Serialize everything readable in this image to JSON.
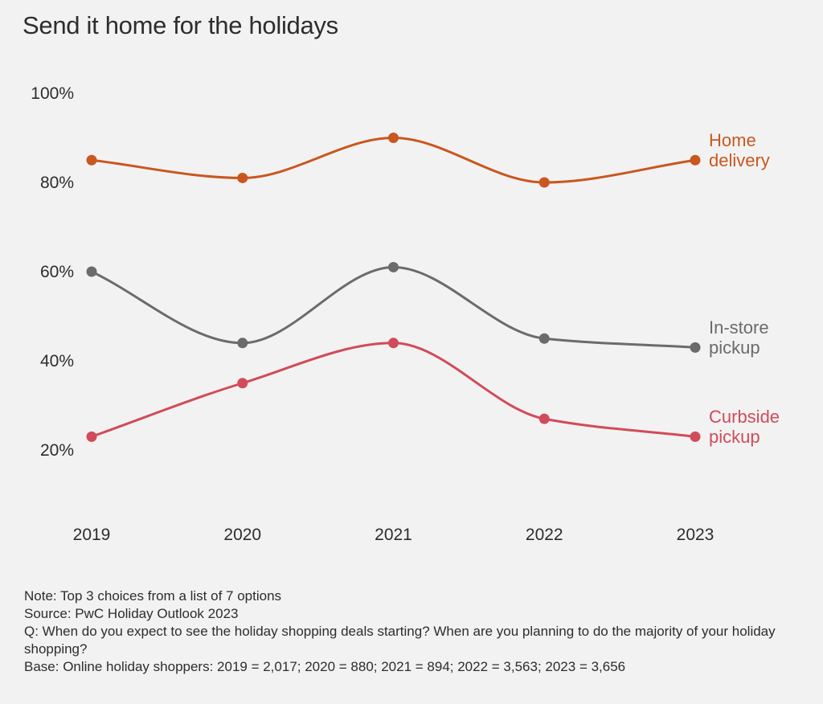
{
  "title": "Send it home for the holidays",
  "chart_data": {
    "type": "line",
    "title": "Send it home for the holidays",
    "categories": [
      "2019",
      "2020",
      "2021",
      "2022",
      "2023"
    ],
    "ylim": [
      20,
      100
    ],
    "y_ticks": [
      20,
      40,
      60,
      80,
      100
    ],
    "y_tick_labels": [
      "20%",
      "40%",
      "60%",
      "80%",
      "100%"
    ],
    "grid": false,
    "curve": "smooth",
    "series": [
      {
        "name": "Home delivery",
        "label_lines": [
          "Home",
          "delivery"
        ],
        "color": "#c9571f",
        "values": [
          85,
          81,
          90,
          80,
          85
        ]
      },
      {
        "name": "In-store pickup",
        "label_lines": [
          "In-store",
          "pickup"
        ],
        "color": "#6b6b6b",
        "values": [
          60,
          44,
          61,
          45,
          43
        ]
      },
      {
        "name": "Curbside pickup",
        "label_lines": [
          "Curbside",
          "pickup"
        ],
        "color": "#d14b5a",
        "values": [
          23,
          35,
          44,
          27,
          23
        ]
      }
    ]
  },
  "notes": {
    "note": "Note: Top 3 choices from a list of 7 options",
    "source": "Source: PwC Holiday Outlook 2023",
    "question": "Q: When do you expect to see the holiday shopping deals starting? When are you planning to do the majority of your holiday shopping?",
    "base": "Base: Online holiday shoppers: 2019 = 2,017; 2020 = 880; 2021 = 894; 2022 = 3,563; 2023 = 3,656"
  }
}
